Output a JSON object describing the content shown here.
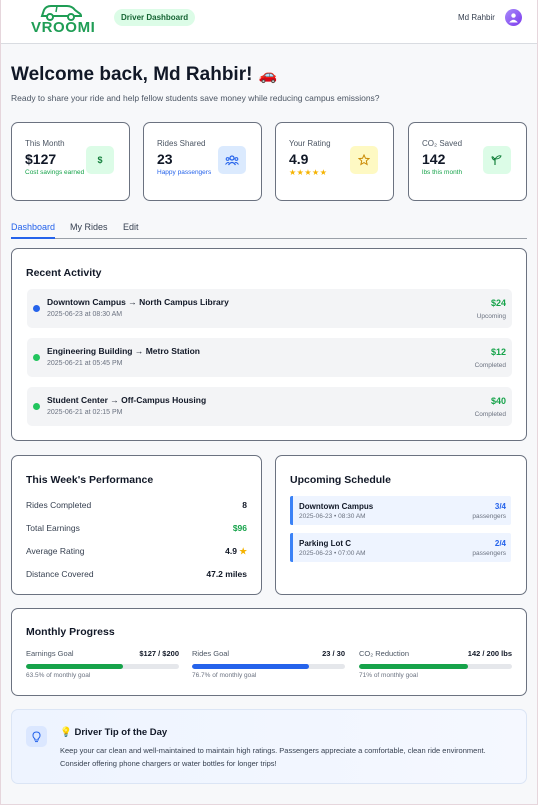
{
  "header": {
    "brand": "VROOMI",
    "role_badge": "Driver Dashboard",
    "user_name": "Md Rahbir"
  },
  "welcome": {
    "title": "Welcome back, Md Rahbir!",
    "emoji": "🚗",
    "subtitle": "Ready to share your ride and help fellow students save money while reducing campus emissions?"
  },
  "stats": [
    {
      "label": "This Month",
      "value": "$127",
      "note": "Cost savings earned",
      "icon": "dollar-icon",
      "icon_text": "$",
      "accent": "#16a34a",
      "icon_bg": "#dcfce7"
    },
    {
      "label": "Rides Shared",
      "value": "23",
      "note": "Happy passengers",
      "icon": "group-icon",
      "accent": "#2563eb",
      "icon_bg": "#dbeafe"
    },
    {
      "label": "Your Rating",
      "value": "4.9",
      "stars": "★★★★★",
      "icon": "star-icon",
      "accent": "#ca8a04",
      "icon_bg": "#fef9c3"
    },
    {
      "label": "CO₂ Saved",
      "value": "142",
      "note": "lbs this month",
      "icon": "sprout-icon",
      "accent": "#16a34a",
      "icon_bg": "#dcfce7"
    }
  ],
  "tabs": [
    "Dashboard",
    "My Rides",
    "Edit"
  ],
  "recent_activity": {
    "title": "Recent Activity",
    "rides": [
      {
        "route": "Downtown Campus → North Campus Library",
        "time": "2025-06-23 at 08:30 AM",
        "amount": "$24",
        "status": "Upcoming",
        "dot": "#2563eb"
      },
      {
        "route": "Engineering Building → Metro Station",
        "time": "2025-06-21 at 05:45 PM",
        "amount": "$12",
        "status": "Completed",
        "dot": "#22c55e"
      },
      {
        "route": "Student Center → Off-Campus Housing",
        "time": "2025-06-21 at 02:15 PM",
        "amount": "$40",
        "status": "Completed",
        "dot": "#22c55e"
      }
    ]
  },
  "performance": {
    "title": "This Week's Performance",
    "rows": [
      {
        "label": "Rides Completed",
        "value": "8"
      },
      {
        "label": "Total Earnings",
        "value": "$96",
        "color": "#16a34a"
      },
      {
        "label": "Average Rating",
        "value": "4.9"
      },
      {
        "label": "Distance Covered",
        "value": "47.2 miles"
      }
    ]
  },
  "schedule": {
    "title": "Upcoming Schedule",
    "items": [
      {
        "location": "Downtown Campus",
        "time": "2025-06-23 • 08:30 AM",
        "count": "3/4",
        "unit": "passengers"
      },
      {
        "location": "Parking Lot C",
        "time": "2025-06-23 • 07:00 AM",
        "count": "2/4",
        "unit": "passengers"
      }
    ]
  },
  "progress": {
    "title": "Monthly Progress",
    "goals": [
      {
        "label": "Earnings Goal",
        "value": "$127 / $200",
        "percent_text": "63.5% of monthly goal",
        "fraction": 0.635,
        "color": "#16a34a"
      },
      {
        "label": "Rides Goal",
        "value": "23 / 30",
        "percent_text": "76.7% of monthly goal",
        "fraction": 0.767,
        "color": "#2563eb"
      },
      {
        "label": "CO₂ Reduction",
        "value": "142 / 200 lbs",
        "percent_text": "71% of monthly goal",
        "fraction": 0.71,
        "color": "#16a34a"
      }
    ]
  },
  "tip": {
    "emoji": "💡",
    "title": "Driver Tip of the Day",
    "text": "Keep your car clean and well-maintained to maintain high ratings. Passengers appreciate a comfortable, clean ride environment. Consider offering phone chargers or water bottles for longer trips!"
  }
}
